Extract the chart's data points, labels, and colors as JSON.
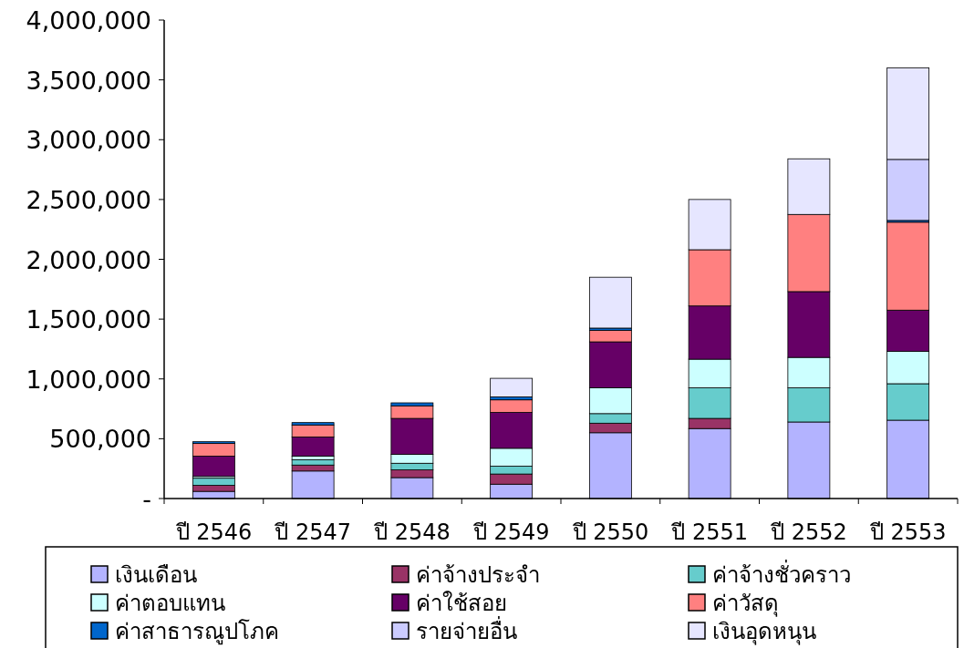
{
  "chart_data": {
    "type": "bar",
    "stacked": true,
    "legend": "bottom",
    "grid": false,
    "categories": [
      "ปี 2546",
      "ปี 2547",
      "ปี 2548",
      "ปี 2549",
      "ปี 2550",
      "ปี 2551",
      "ปี 2552",
      "ปี 2553"
    ],
    "ylim": [
      0,
      4000000
    ],
    "yticks": [
      {
        "value": 0,
        "label": "-"
      },
      {
        "value": 500000,
        "label": "500,000"
      },
      {
        "value": 1000000,
        "label": "1,000,000"
      },
      {
        "value": 1500000,
        "label": "1,500,000"
      },
      {
        "value": 2000000,
        "label": "2,000,000"
      },
      {
        "value": 2500000,
        "label": "2,500,000"
      },
      {
        "value": 3000000,
        "label": "3,000,000"
      },
      {
        "value": 3500000,
        "label": "3,500,000"
      },
      {
        "value": 4000000,
        "label": "4,000,000"
      }
    ],
    "series": [
      {
        "name": "เงินเดือน",
        "color": "#b3b3ff",
        "values": [
          60000,
          230000,
          175000,
          120000,
          550000,
          585000,
          640000,
          655000
        ]
      },
      {
        "name": "ค่าจ้างประจำ",
        "color": "#993366",
        "values": [
          50000,
          50000,
          65000,
          85000,
          80000,
          85000,
          0,
          0
        ]
      },
      {
        "name": "ค่าจ้างชั่วคราว",
        "color": "#66cccc",
        "values": [
          60000,
          45000,
          55000,
          65000,
          80000,
          255000,
          285000,
          305000
        ]
      },
      {
        "name": "ค่าตอบแทน",
        "color": "#ccffff",
        "values": [
          15000,
          30000,
          75000,
          150000,
          215000,
          240000,
          255000,
          270000
        ]
      },
      {
        "name": "ค่าใช้สอย",
        "color": "#660066",
        "values": [
          170000,
          160000,
          300000,
          300000,
          385000,
          445000,
          550000,
          345000
        ]
      },
      {
        "name": "ค่าวัสดุ",
        "color": "#ff8080",
        "values": [
          105000,
          100000,
          105000,
          105000,
          95000,
          470000,
          645000,
          735000
        ]
      },
      {
        "name": "ค่าสาธารณูปโภค",
        "color": "#0066cc",
        "values": [
          15000,
          20000,
          25000,
          25000,
          20000,
          0,
          0,
          15000
        ]
      },
      {
        "name": "รายจ่ายอื่น",
        "color": "#ccccff",
        "values": [
          0,
          0,
          0,
          0,
          0,
          0,
          0,
          510000
        ]
      },
      {
        "name": "เงินอุดหนุน",
        "color": "#e6e6ff",
        "values": [
          0,
          0,
          0,
          155000,
          425000,
          420000,
          465000,
          765000
        ]
      }
    ]
  }
}
